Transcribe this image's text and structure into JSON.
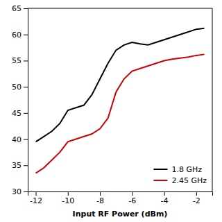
{
  "chart_data": {
    "type": "line",
    "xlabel": "Input RF Power (dBm)",
    "x": [
      -12,
      -11.5,
      -11,
      -10.5,
      -10,
      -9.5,
      -9,
      -8.5,
      -8,
      -7.5,
      -7,
      -6.5,
      -6,
      -5.5,
      -5,
      -4.5,
      -4,
      -3.5,
      -3,
      -2.5,
      -2,
      -1.5
    ],
    "series": [
      {
        "name": "1.8 GHz",
        "color": "#000000",
        "values": [
          39.5,
          40.5,
          41.5,
          43.0,
          45.5,
          46.0,
          46.5,
          48.5,
          51.5,
          54.5,
          57.0,
          58.0,
          58.5,
          58.2,
          58.0,
          58.5,
          59.0,
          59.5,
          60.0,
          60.5,
          61.0,
          61.2
        ]
      },
      {
        "name": "2.45 GHz",
        "color": "#cc0000",
        "values": [
          33.5,
          34.5,
          36.0,
          37.5,
          39.5,
          40.0,
          40.5,
          41.0,
          42.0,
          44.0,
          49.0,
          51.5,
          53.0,
          53.5,
          54.0,
          54.5,
          55.0,
          55.3,
          55.5,
          55.7,
          56.0,
          56.2
        ]
      }
    ],
    "xlim": [
      -12.5,
      -1.0
    ],
    "ylim": [
      30,
      65
    ],
    "xticks": [
      -12,
      -10,
      -8,
      -6,
      -4,
      -2
    ],
    "yticks": [
      30,
      35,
      40,
      45,
      50,
      55,
      60,
      65
    ],
    "grid": false,
    "legend": "lower right"
  }
}
